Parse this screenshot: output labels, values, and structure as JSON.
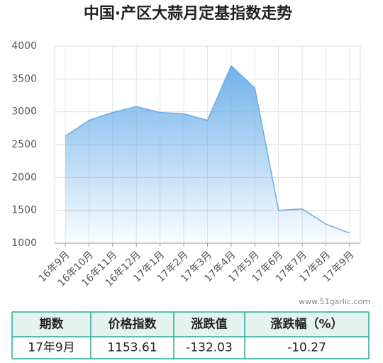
{
  "chart_data": {
    "type": "area",
    "title": "中国·产区大蒜月定基指数走势",
    "categories": [
      "16年9月",
      "16年10月",
      "16年11月",
      "16年12月",
      "17年1月",
      "17年2月",
      "17年3月",
      "17年4月",
      "17年5月",
      "17年6月",
      "17年7月",
      "17年8月",
      "17年9月"
    ],
    "values": [
      2630,
      2870,
      2990,
      3080,
      2990,
      2970,
      2870,
      3700,
      3360,
      1500,
      1520,
      1290,
      1153.61
    ],
    "color": "#6aaee8",
    "ylim": [
      1000,
      4000
    ],
    "yticks": [
      1000,
      1500,
      2000,
      2500,
      3000,
      3500,
      4000
    ],
    "grid": true
  },
  "watermark": "www.51garlic.com",
  "table": {
    "header": [
      "期数",
      "价格指数",
      "涨跌值",
      "涨跌幅（%）"
    ],
    "rows": [
      [
        "17年9月",
        "1153.61",
        "-132.03",
        "-10.27"
      ]
    ]
  }
}
